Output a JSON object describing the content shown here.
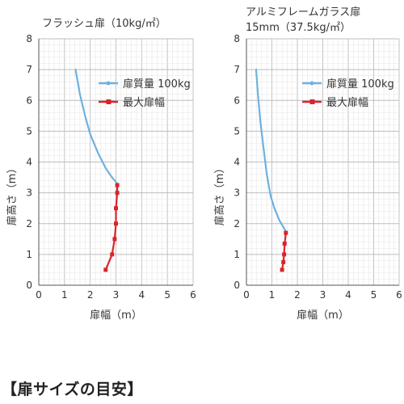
{
  "colors": {
    "weight_line": "#6eb1e0",
    "max_size_line": "#d9242b",
    "grid_minor": "#e6e6e6",
    "grid_major": "#bdbdbd",
    "axis": "#555555",
    "text": "#333333"
  },
  "footer": "【扉サイズの目安】",
  "chart_data": [
    {
      "type": "line",
      "title": "フラッシュ扉（10kg/㎡）",
      "xlabel": "扉幅（m）",
      "ylabel": "扉高さ（m）",
      "xlim": [
        0,
        6
      ],
      "ylim": [
        0,
        8
      ],
      "xticks": [
        "0",
        "1",
        "2",
        "3",
        "4",
        "5",
        "6"
      ],
      "yticks": [
        "0",
        "1",
        "2",
        "3",
        "4",
        "5",
        "6",
        "7",
        "8"
      ],
      "grid": true,
      "legend_position": "top-right",
      "series": [
        {
          "name": "扉質量 100kg",
          "color": "#6eb1e0",
          "markers": false,
          "points": [
            [
              1.43,
              7.0
            ],
            [
              1.6,
              6.2
            ],
            [
              1.8,
              5.5
            ],
            [
              2.0,
              4.9
            ],
            [
              2.3,
              4.3
            ],
            [
              2.6,
              3.8
            ],
            [
              2.85,
              3.5
            ],
            [
              3.05,
              3.3
            ]
          ]
        },
        {
          "name": "最大扉幅",
          "color": "#d9242b",
          "markers": true,
          "points": [
            [
              3.05,
              3.25
            ],
            [
              3.05,
              3.0
            ],
            [
              3.0,
              2.5
            ],
            [
              3.0,
              2.0
            ],
            [
              2.95,
              1.5
            ],
            [
              2.85,
              1.0
            ],
            [
              2.6,
              0.5
            ]
          ]
        }
      ]
    },
    {
      "type": "line",
      "title": "アルミフレームガラス扉",
      "subtitle": "15mm（37.5kg/㎡）",
      "xlabel": "扉幅（m）",
      "ylabel": "扉高さ（m）",
      "xlim": [
        0,
        6
      ],
      "ylim": [
        0,
        8
      ],
      "xticks": [
        "0",
        "1",
        "2",
        "3",
        "4",
        "5",
        "6"
      ],
      "yticks": [
        "0",
        "1",
        "2",
        "3",
        "4",
        "5",
        "6",
        "7",
        "8"
      ],
      "grid": true,
      "legend_position": "top-right",
      "series": [
        {
          "name": "扉質量 100kg",
          "color": "#6eb1e0",
          "markers": false,
          "points": [
            [
              0.38,
              7.0
            ],
            [
              0.45,
              6.2
            ],
            [
              0.55,
              5.3
            ],
            [
              0.68,
              4.4
            ],
            [
              0.8,
              3.6
            ],
            [
              0.95,
              2.9
            ],
            [
              1.1,
              2.5
            ],
            [
              1.3,
              2.1
            ],
            [
              1.55,
              1.75
            ]
          ]
        },
        {
          "name": "最大扉幅",
          "color": "#d9242b",
          "markers": true,
          "points": [
            [
              1.55,
              1.7
            ],
            [
              1.5,
              1.35
            ],
            [
              1.48,
              1.0
            ],
            [
              1.45,
              0.75
            ],
            [
              1.4,
              0.5
            ]
          ]
        }
      ]
    }
  ]
}
